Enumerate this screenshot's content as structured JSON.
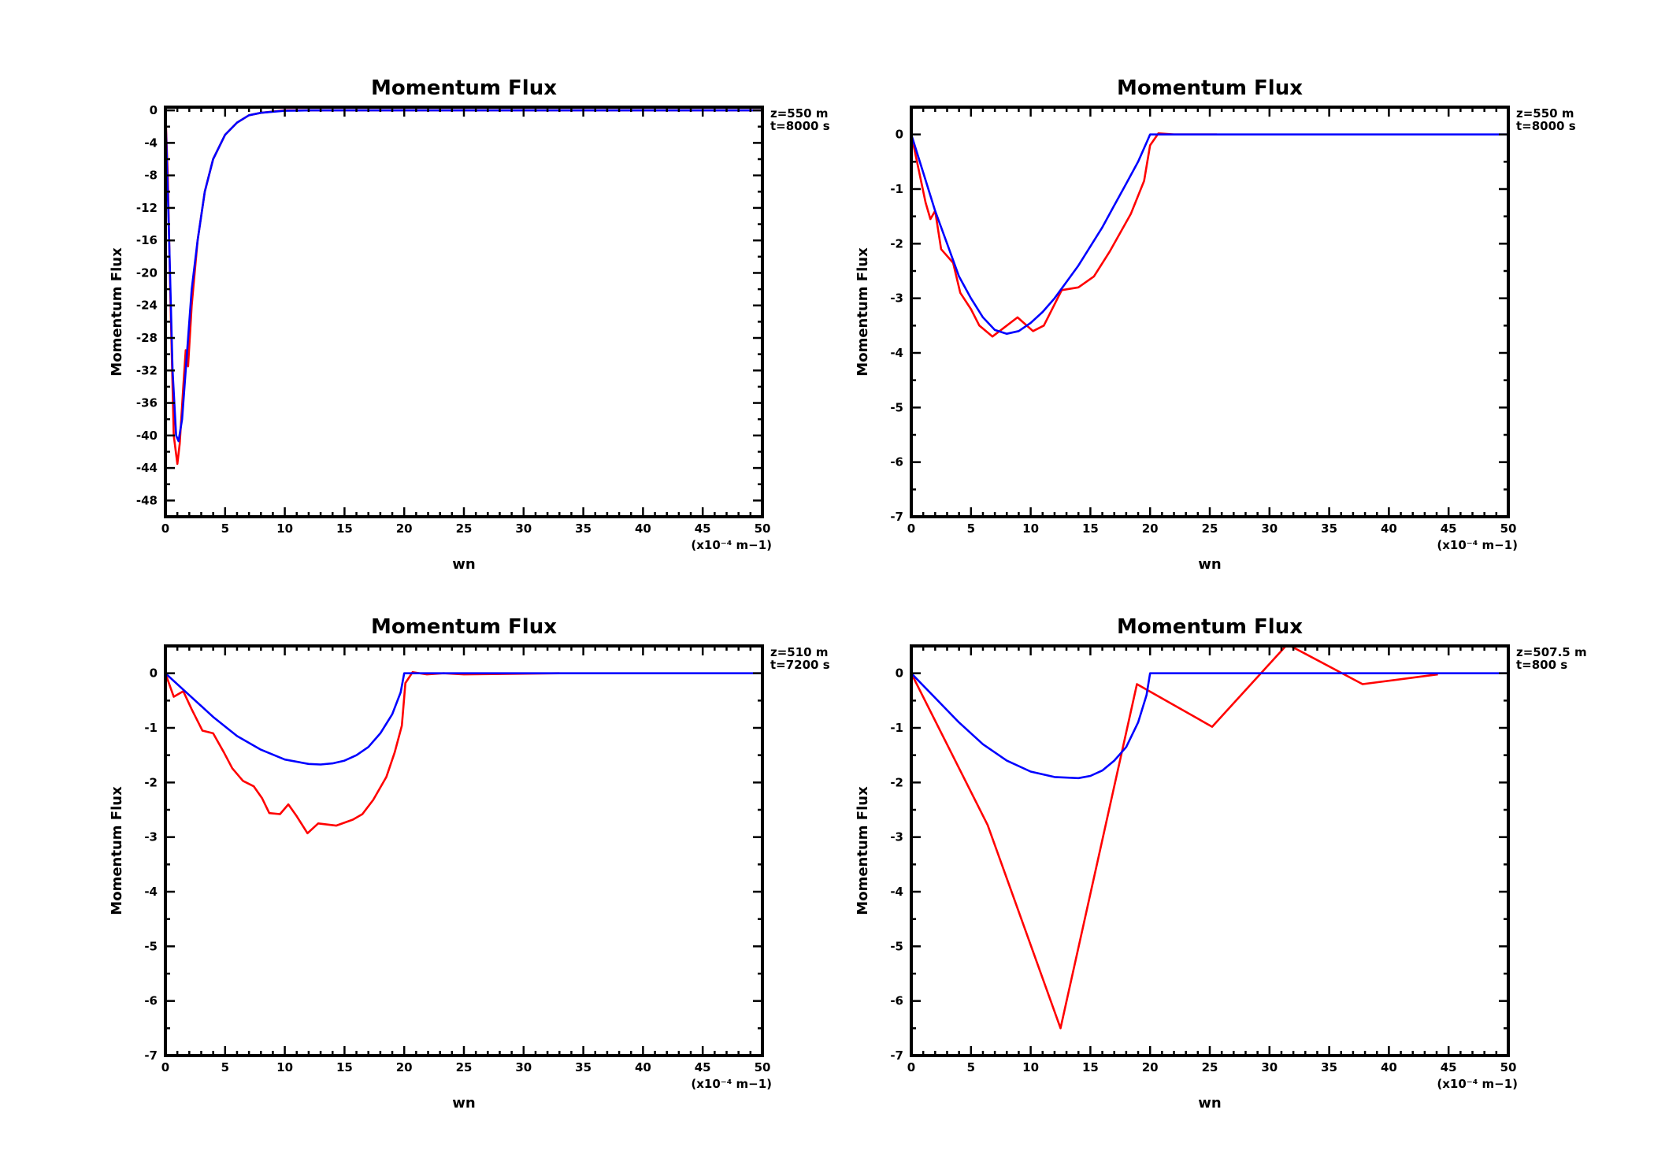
{
  "chart_data": [
    {
      "type": "line",
      "title": "Momentum Flux",
      "xlabel": "wn",
      "xunits": "(x10⁻⁴ m−1)",
      "ylabel": "Momentum Flux",
      "annotation": [
        "z=550 m",
        "t=8000 s"
      ],
      "xlim": [
        0,
        50
      ],
      "ylim": [
        -50,
        0.4
      ],
      "xticks": [
        0,
        5,
        10,
        15,
        20,
        25,
        30,
        35,
        40,
        45,
        50
      ],
      "yticks": [
        0,
        -4,
        -8,
        -12,
        -16,
        -20,
        -24,
        -28,
        -32,
        -36,
        -40,
        -44,
        -48
      ],
      "xminor": 1,
      "yminor": 2,
      "series": [
        {
          "name": "red",
          "color": "#ff0000",
          "x": [
            0,
            0.2,
            0.4,
            0.7,
            1,
            1.2,
            1.5,
            1.7,
            1.9,
            2.2,
            2.7,
            3.3,
            4,
            5,
            6,
            7,
            8,
            10,
            50
          ],
          "y": [
            0,
            -8,
            -22,
            -40,
            -43.5,
            -41,
            -34,
            -29.5,
            -31.5,
            -24,
            -16,
            -10,
            -6,
            -3,
            -1.5,
            -0.6,
            -0.3,
            0,
            0
          ]
        },
        {
          "name": "blue",
          "color": "#0000ff",
          "x": [
            0,
            0.3,
            0.6,
            0.9,
            1.1,
            1.4,
            1.8,
            2.2,
            2.7,
            3.3,
            4,
            5,
            6,
            7,
            8,
            10,
            12,
            50
          ],
          "y": [
            0,
            -15,
            -32,
            -40,
            -40.7,
            -38,
            -30,
            -22,
            -16,
            -10,
            -6,
            -3,
            -1.5,
            -0.6,
            -0.3,
            -0.05,
            0,
            0
          ]
        }
      ]
    },
    {
      "type": "line",
      "title": "Momentum Flux",
      "xlabel": "wn",
      "xunits": "(x10⁻⁴ m−1)",
      "ylabel": "Momentum Flux",
      "annotation": [
        "z=550 m",
        "t=8000 s"
      ],
      "xlim": [
        0,
        50
      ],
      "ylim": [
        -7,
        0.5
      ],
      "xticks": [
        0,
        5,
        10,
        15,
        20,
        25,
        30,
        35,
        40,
        45,
        50
      ],
      "yticks": [
        0,
        -1,
        -2,
        -3,
        -4,
        -5,
        -6,
        -7
      ],
      "xminor": 1,
      "yminor": 0.5,
      "series": [
        {
          "name": "red",
          "color": "#ff0000",
          "x": [
            0,
            1.2,
            1.6,
            2,
            2.5,
            3.5,
            4.1,
            5,
            5.7,
            6.8,
            7.7,
            8.9,
            10.2,
            11.1,
            12.6,
            14,
            15.3,
            16.6,
            18.4,
            19.5,
            20,
            20.7,
            22,
            25.6
          ],
          "y": [
            0,
            -1.25,
            -1.55,
            -1.4,
            -2.1,
            -2.35,
            -2.9,
            -3.2,
            -3.5,
            -3.7,
            -3.55,
            -3.35,
            -3.6,
            -3.5,
            -2.85,
            -2.8,
            -2.6,
            -2.15,
            -1.45,
            -0.85,
            -0.2,
            0.02,
            0,
            0
          ]
        },
        {
          "name": "blue",
          "color": "#0000ff",
          "x": [
            0,
            1,
            2,
            3,
            4,
            5,
            6,
            7,
            8,
            9,
            10,
            11,
            12,
            13,
            14,
            15,
            16,
            17,
            18,
            19,
            19.8,
            20,
            50
          ],
          "y": [
            0,
            -0.7,
            -1.4,
            -2.0,
            -2.6,
            -3.0,
            -3.35,
            -3.58,
            -3.65,
            -3.6,
            -3.45,
            -3.25,
            -3.0,
            -2.7,
            -2.4,
            -2.05,
            -1.7,
            -1.3,
            -0.9,
            -0.5,
            -0.1,
            0,
            0
          ]
        }
      ]
    },
    {
      "type": "line",
      "title": "Momentum Flux",
      "xlabel": "wn",
      "xunits": "(x10⁻⁴ m−1)",
      "ylabel": "Momentum Flux",
      "annotation": [
        "z=510 m",
        "t=7200 s"
      ],
      "xlim": [
        0,
        50
      ],
      "ylim": [
        -7,
        0.5
      ],
      "xticks": [
        0,
        5,
        10,
        15,
        20,
        25,
        30,
        35,
        40,
        45,
        50
      ],
      "yticks": [
        0,
        -1,
        -2,
        -3,
        -4,
        -5,
        -6,
        -7
      ],
      "xminor": 1,
      "yminor": 0.5,
      "series": [
        {
          "name": "red",
          "color": "#ff0000",
          "x": [
            0,
            0.7,
            1.5,
            2.2,
            3.1,
            4,
            4.9,
            5.6,
            6.5,
            7.4,
            8.1,
            8.7,
            9.6,
            10.3,
            11,
            11.9,
            12.8,
            14.3,
            15.7,
            16.5,
            17.4,
            18.5,
            19.2,
            19.8,
            20.1,
            20.7,
            21.9,
            23.3,
            25,
            33
          ],
          "y": [
            0,
            -0.43,
            -0.33,
            -0.66,
            -1.05,
            -1.1,
            -1.45,
            -1.74,
            -1.97,
            -2.07,
            -2.29,
            -2.56,
            -2.58,
            -2.4,
            -2.62,
            -2.93,
            -2.75,
            -2.79,
            -2.68,
            -2.58,
            -2.32,
            -1.9,
            -1.45,
            -0.96,
            -0.18,
            0.02,
            -0.02,
            0,
            -0.02,
            0
          ]
        },
        {
          "name": "blue",
          "color": "#0000ff",
          "x": [
            0,
            2,
            4,
            6,
            8,
            10,
            12,
            13,
            14,
            15,
            16,
            17,
            18,
            19,
            19.7,
            20,
            50
          ],
          "y": [
            0,
            -0.4,
            -0.8,
            -1.15,
            -1.4,
            -1.58,
            -1.66,
            -1.67,
            -1.65,
            -1.6,
            -1.5,
            -1.35,
            -1.1,
            -0.75,
            -0.35,
            0,
            0
          ]
        }
      ]
    },
    {
      "type": "line",
      "title": "Momentum Flux",
      "xlabel": "wn",
      "xunits": "(x10⁻⁴ m−1)",
      "ylabel": "Momentum Flux",
      "annotation": [
        "z=507.5 m",
        "t=800 s"
      ],
      "xlim": [
        0,
        50
      ],
      "ylim": [
        -7,
        0.5
      ],
      "xticks": [
        0,
        5,
        10,
        15,
        20,
        25,
        30,
        35,
        40,
        45,
        50
      ],
      "yticks": [
        0,
        -1,
        -2,
        -3,
        -4,
        -5,
        -6,
        -7
      ],
      "xminor": 1,
      "yminor": 0.5,
      "series": [
        {
          "name": "red",
          "color": "#ff0000",
          "x": [
            0,
            6.4,
            12.5,
            18.9,
            25.2,
            31.5,
            37.8,
            44.1
          ],
          "y": [
            0,
            -2.78,
            -6.5,
            -0.2,
            -0.98,
            0.53,
            -0.2,
            -0.02
          ]
        },
        {
          "name": "blue",
          "color": "#0000ff",
          "x": [
            0,
            2,
            4,
            6,
            8,
            10,
            12,
            14,
            15,
            16,
            17,
            18,
            19,
            19.7,
            20,
            50
          ],
          "y": [
            0,
            -0.45,
            -0.9,
            -1.3,
            -1.6,
            -1.8,
            -1.9,
            -1.92,
            -1.88,
            -1.78,
            -1.6,
            -1.35,
            -0.9,
            -0.4,
            0,
            0
          ]
        }
      ]
    }
  ]
}
